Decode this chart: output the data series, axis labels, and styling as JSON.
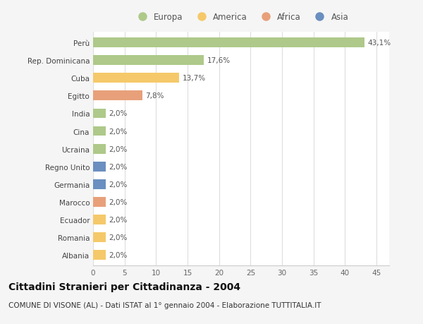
{
  "categories": [
    "Albania",
    "Romania",
    "Ecuador",
    "Marocco",
    "Germania",
    "Regno Unito",
    "Ucraina",
    "Cina",
    "India",
    "Egitto",
    "Cuba",
    "Rep. Dominicana",
    "Perù"
  ],
  "values": [
    43.1,
    17.6,
    13.7,
    7.8,
    2.0,
    2.0,
    2.0,
    2.0,
    2.0,
    2.0,
    2.0,
    2.0,
    2.0
  ],
  "labels": [
    "43,1%",
    "17,6%",
    "13,7%",
    "7,8%",
    "2,0%",
    "2,0%",
    "2,0%",
    "2,0%",
    "2,0%",
    "2,0%",
    "2,0%",
    "2,0%",
    "2,0%"
  ],
  "colors": [
    "#aec98a",
    "#aec98a",
    "#f5c96a",
    "#e8a07a",
    "#aec98a",
    "#aec98a",
    "#aec98a",
    "#6a8fc0",
    "#6a8fc0",
    "#e8a07a",
    "#f5c96a",
    "#f5c96a",
    "#f5c96a"
  ],
  "legend_labels": [
    "Europa",
    "America",
    "Africa",
    "Asia"
  ],
  "legend_colors": [
    "#aec98a",
    "#f5c96a",
    "#e8a07a",
    "#6a8fc0"
  ],
  "title": "Cittadini Stranieri per Cittadinanza - 2004",
  "subtitle": "COMUNE DI VISONE (AL) - Dati ISTAT al 1° gennaio 2004 - Elaborazione TUTTITALIA.IT",
  "xlim": [
    0,
    47
  ],
  "xticks": [
    0,
    5,
    10,
    15,
    20,
    25,
    30,
    35,
    40,
    45
  ],
  "background_color": "#f5f5f5",
  "bar_background": "#ffffff",
  "grid_color": "#dddddd",
  "title_fontsize": 10,
  "subtitle_fontsize": 7.5,
  "label_fontsize": 7.5,
  "tick_fontsize": 7.5,
  "ytick_fontsize": 7.5
}
